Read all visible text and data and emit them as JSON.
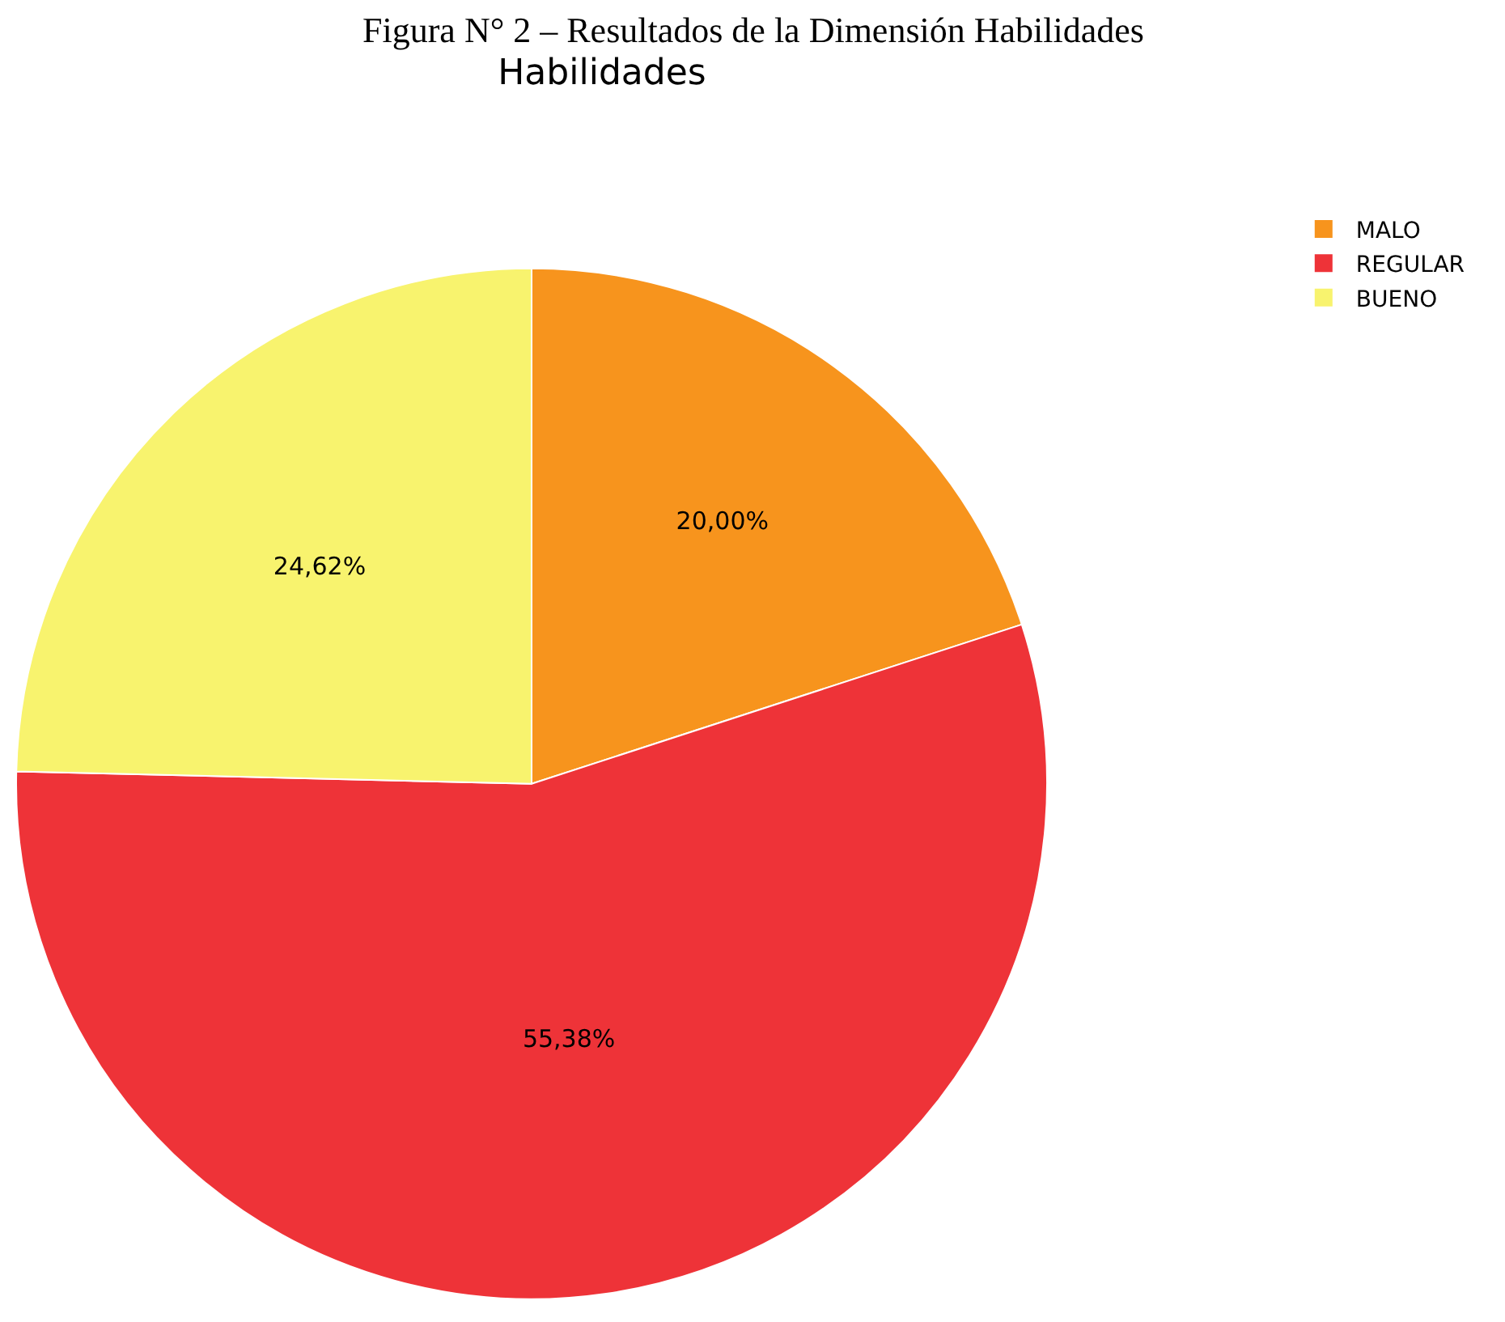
{
  "chart_data": {
    "type": "pie",
    "title": "Habilidades",
    "annotations": [
      "Figura N° 2 – Resultados de la Dimensión Habilidades"
    ],
    "categories": [
      "MALO",
      "REGULAR",
      "BUENO"
    ],
    "values": [
      20.0,
      55.38,
      24.62
    ],
    "colors": [
      "#f7941d",
      "#ee3338",
      "#f8f36e"
    ],
    "value_labels": [
      "20,00%",
      "55,38%",
      "24,62%"
    ],
    "legend": "top right"
  }
}
